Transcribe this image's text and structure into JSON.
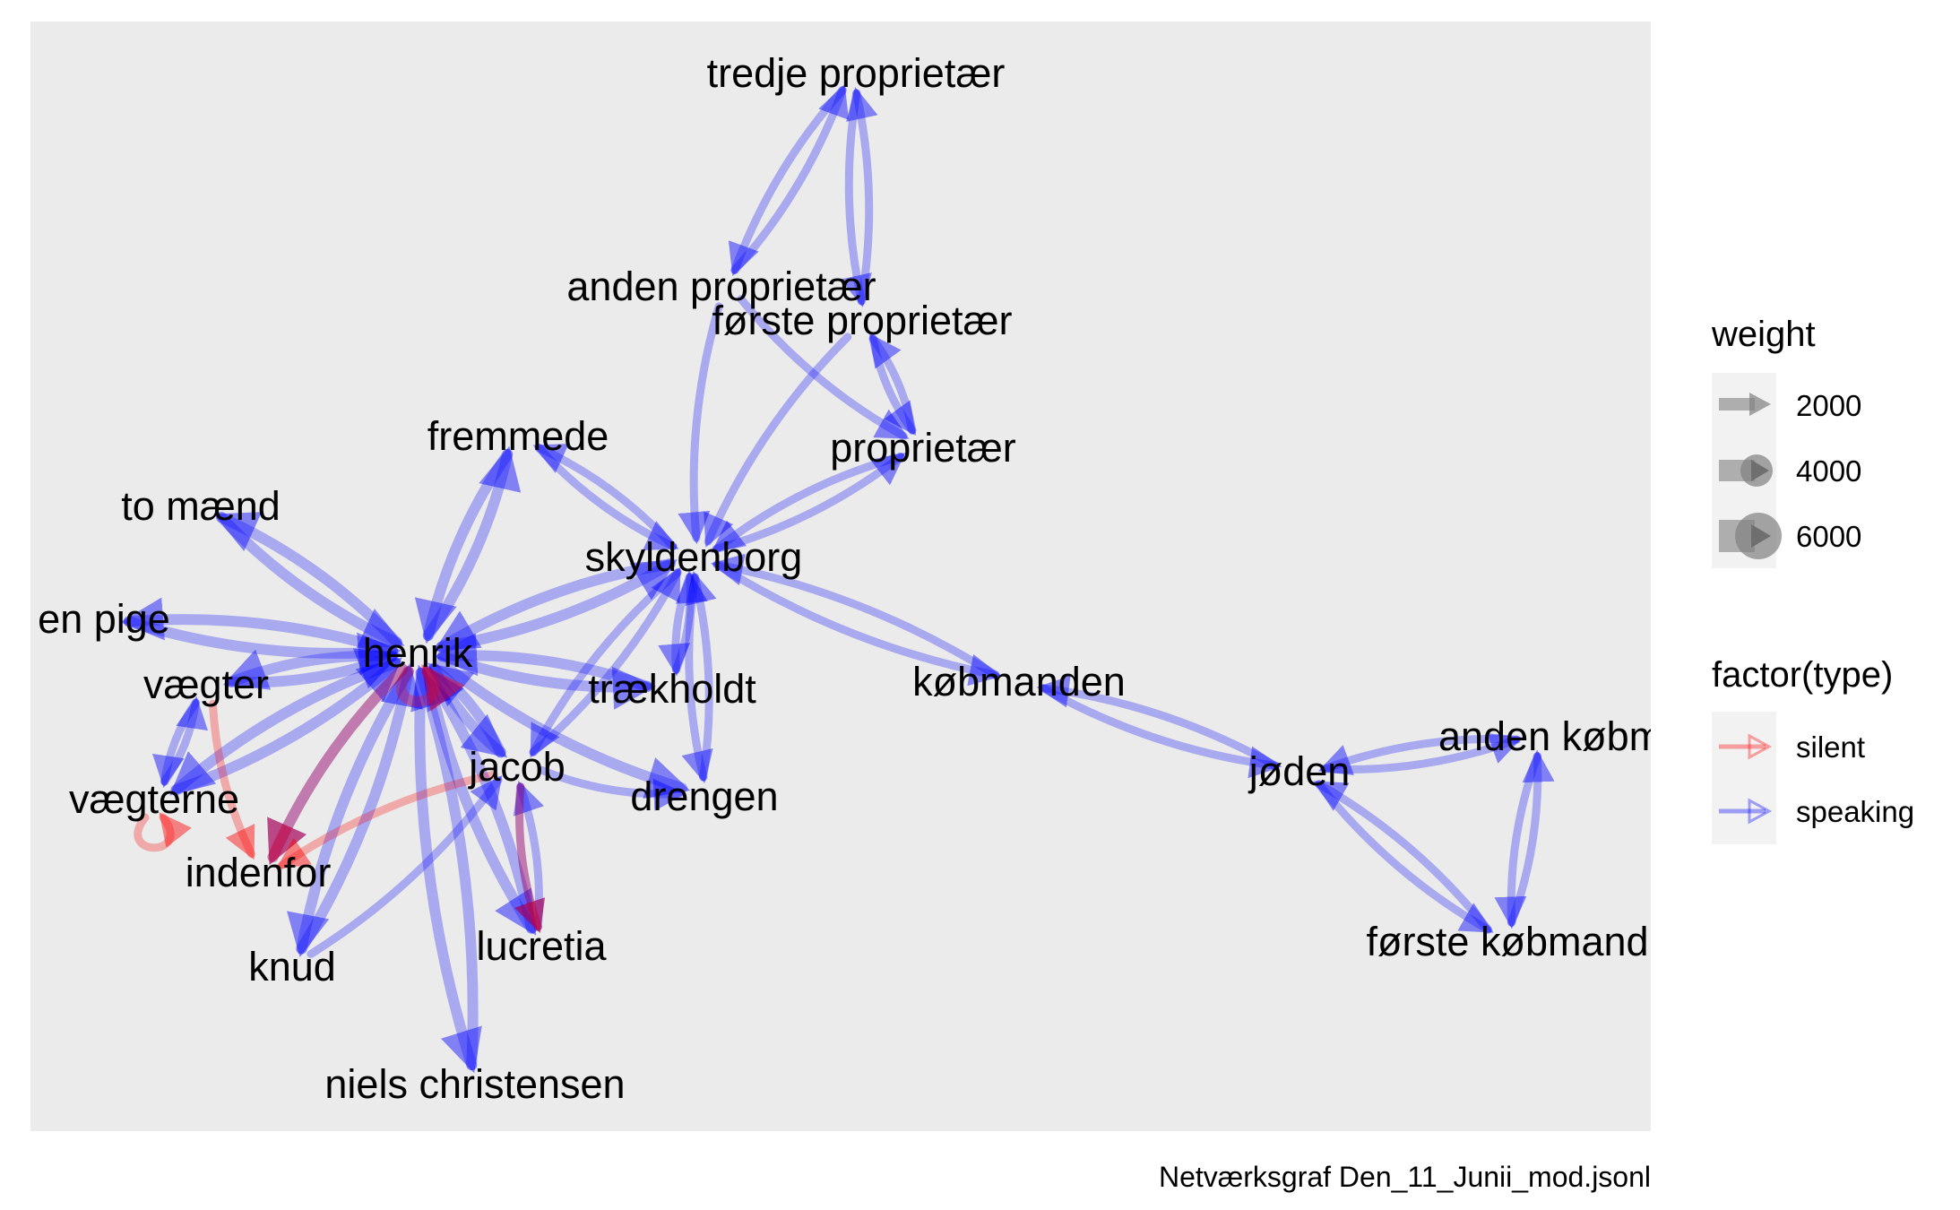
{
  "caption": "Netværksgraf Den_11_Junii_mod.jsonl",
  "colors": {
    "panel": "#ebebeb",
    "speaking": "#0000ff",
    "silent": "#ff0000",
    "legend_key": "#f2f2f2",
    "weight_key": "#808080"
  },
  "legend": {
    "weight_title": "weight",
    "weight_labels": [
      "2000",
      "4000",
      "6000"
    ],
    "type_title": "factor(type)",
    "type_labels": [
      "silent",
      "speaking"
    ]
  },
  "nodes": [
    {
      "id": "tredje_proprietaer",
      "label": "tredje proprietær"
    },
    {
      "id": "anden_proprietaer",
      "label": "anden proprietær"
    },
    {
      "id": "forste_proprietaer",
      "label": "første proprietær"
    },
    {
      "id": "proprietaer",
      "label": "proprietær"
    },
    {
      "id": "fremmede",
      "label": "fremmede"
    },
    {
      "id": "to_maend",
      "label": "to mænd"
    },
    {
      "id": "skyldenborg",
      "label": "skyldenborg"
    },
    {
      "id": "en_pige",
      "label": "en pige"
    },
    {
      "id": "henrik",
      "label": "henrik"
    },
    {
      "id": "vaegter",
      "label": "vægter"
    },
    {
      "id": "traekholdt",
      "label": "trækholdt"
    },
    {
      "id": "kobmanden",
      "label": "købmanden"
    },
    {
      "id": "jacob",
      "label": "jacob"
    },
    {
      "id": "drengen",
      "label": "drengen"
    },
    {
      "id": "vaegterne",
      "label": "vægterne"
    },
    {
      "id": "indenfor",
      "label": "indenfor"
    },
    {
      "id": "knud",
      "label": "knud"
    },
    {
      "id": "lucretia",
      "label": "lucretia"
    },
    {
      "id": "niels_christensen",
      "label": "niels christensen"
    },
    {
      "id": "joden",
      "label": "jøden"
    },
    {
      "id": "anden_kobmand",
      "label": "anden købm"
    },
    {
      "id": "forste_kobmand",
      "label": "første købmand"
    }
  ],
  "edges": [
    {
      "from": "tredje_proprietaer",
      "to": "anden_proprietaer",
      "type": "speaking"
    },
    {
      "from": "anden_proprietaer",
      "to": "tredje_proprietaer",
      "type": "speaking"
    },
    {
      "from": "tredje_proprietaer",
      "to": "forste_proprietaer",
      "type": "speaking"
    },
    {
      "from": "forste_proprietaer",
      "to": "tredje_proprietaer",
      "type": "speaking"
    },
    {
      "from": "anden_proprietaer",
      "to": "skyldenborg",
      "type": "speaking"
    },
    {
      "from": "anden_proprietaer",
      "to": "proprietaer",
      "type": "speaking"
    },
    {
      "from": "forste_proprietaer",
      "to": "skyldenborg",
      "type": "speaking"
    },
    {
      "from": "forste_proprietaer",
      "to": "proprietaer",
      "type": "speaking"
    },
    {
      "from": "proprietaer",
      "to": "forste_proprietaer",
      "type": "speaking"
    },
    {
      "from": "skyldenborg",
      "to": "proprietaer",
      "type": "speaking"
    },
    {
      "from": "proprietaer",
      "to": "skyldenborg",
      "type": "speaking"
    },
    {
      "from": "fremmede",
      "to": "henrik",
      "type": "speaking"
    },
    {
      "from": "henrik",
      "to": "fremmede",
      "type": "speaking"
    },
    {
      "from": "fremmede",
      "to": "skyldenborg",
      "type": "speaking"
    },
    {
      "from": "skyldenborg",
      "to": "fremmede",
      "type": "speaking"
    },
    {
      "from": "to_maend",
      "to": "henrik",
      "type": "speaking"
    },
    {
      "from": "henrik",
      "to": "to_maend",
      "type": "speaking"
    },
    {
      "from": "henrik",
      "to": "en_pige",
      "type": "speaking"
    },
    {
      "from": "en_pige",
      "to": "henrik",
      "type": "speaking"
    },
    {
      "from": "henrik",
      "to": "skyldenborg",
      "type": "speaking"
    },
    {
      "from": "skyldenborg",
      "to": "henrik",
      "type": "speaking"
    },
    {
      "from": "skyldenborg",
      "to": "traekholdt",
      "type": "speaking"
    },
    {
      "from": "traekholdt",
      "to": "skyldenborg",
      "type": "speaking"
    },
    {
      "from": "skyldenborg",
      "to": "drengen",
      "type": "speaking"
    },
    {
      "from": "drengen",
      "to": "skyldenborg",
      "type": "speaking"
    },
    {
      "from": "skyldenborg",
      "to": "jacob",
      "type": "speaking"
    },
    {
      "from": "jacob",
      "to": "skyldenborg",
      "type": "speaking"
    },
    {
      "from": "skyldenborg",
      "to": "kobmanden",
      "type": "speaking"
    },
    {
      "from": "kobmanden",
      "to": "skyldenborg",
      "type": "speaking"
    },
    {
      "from": "henrik",
      "to": "vaegter",
      "type": "speaking"
    },
    {
      "from": "vaegter",
      "to": "henrik",
      "type": "speaking"
    },
    {
      "from": "henrik",
      "to": "vaegterne",
      "type": "speaking"
    },
    {
      "from": "vaegterne",
      "to": "henrik",
      "type": "speaking"
    },
    {
      "from": "henrik",
      "to": "indenfor",
      "type": "speaking"
    },
    {
      "from": "henrik",
      "to": "knud",
      "type": "speaking"
    },
    {
      "from": "knud",
      "to": "henrik",
      "type": "speaking"
    },
    {
      "from": "henrik",
      "to": "jacob",
      "type": "speaking"
    },
    {
      "from": "jacob",
      "to": "henrik",
      "type": "speaking"
    },
    {
      "from": "henrik",
      "to": "traekholdt",
      "type": "speaking"
    },
    {
      "from": "traekholdt",
      "to": "henrik",
      "type": "speaking"
    },
    {
      "from": "henrik",
      "to": "drengen",
      "type": "speaking"
    },
    {
      "from": "henrik",
      "to": "lucretia",
      "type": "speaking"
    },
    {
      "from": "lucretia",
      "to": "henrik",
      "type": "speaking"
    },
    {
      "from": "henrik",
      "to": "niels_christensen",
      "type": "speaking"
    },
    {
      "from": "niels_christensen",
      "to": "henrik",
      "type": "speaking"
    },
    {
      "from": "jacob",
      "to": "drengen",
      "type": "speaking"
    },
    {
      "from": "jacob",
      "to": "lucretia",
      "type": "speaking"
    },
    {
      "from": "lucretia",
      "to": "jacob",
      "type": "speaking"
    },
    {
      "from": "vaegter",
      "to": "vaegterne",
      "type": "speaking"
    },
    {
      "from": "vaegterne",
      "to": "vaegter",
      "type": "speaking"
    },
    {
      "from": "knud",
      "to": "jacob",
      "type": "speaking"
    },
    {
      "from": "kobmanden",
      "to": "joden",
      "type": "speaking"
    },
    {
      "from": "joden",
      "to": "kobmanden",
      "type": "speaking"
    },
    {
      "from": "joden",
      "to": "anden_kobmand",
      "type": "speaking"
    },
    {
      "from": "anden_kobmand",
      "to": "joden",
      "type": "speaking"
    },
    {
      "from": "joden",
      "to": "forste_kobmand",
      "type": "speaking"
    },
    {
      "from": "forste_kobmand",
      "to": "joden",
      "type": "speaking"
    },
    {
      "from": "anden_kobmand",
      "to": "forste_kobmand",
      "type": "speaking"
    },
    {
      "from": "forste_kobmand",
      "to": "anden_kobmand",
      "type": "speaking"
    },
    {
      "from": "vaegter",
      "to": "indenfor",
      "type": "silent"
    },
    {
      "from": "henrik",
      "to": "indenfor",
      "type": "silent"
    },
    {
      "from": "jacob",
      "to": "indenfor",
      "type": "silent"
    },
    {
      "from": "jacob",
      "to": "lucretia",
      "type": "silent"
    },
    {
      "from": "vaegterne",
      "to": "vaegterne",
      "type": "silent"
    },
    {
      "from": "henrik",
      "to": "henrik",
      "type": "silent"
    }
  ]
}
